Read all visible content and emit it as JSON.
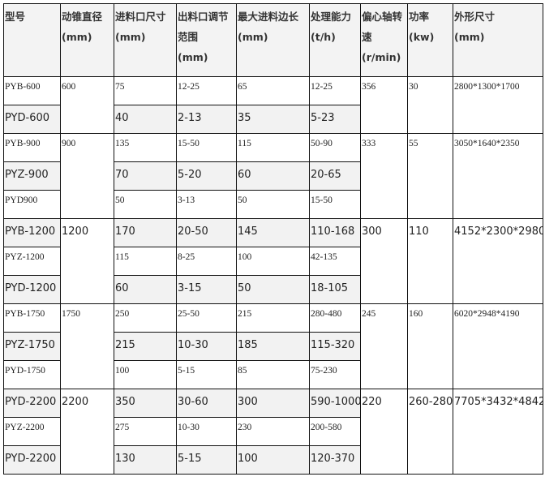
{
  "headers": [
    "型号",
    "动锥直径\n (mm)",
    "进料口尺寸\n (mm)",
    "出料口调节\n范围\n (mm)",
    "最大进料边长\n (mm)",
    "处理能力\n (t/h)",
    "偏心轴转\n速\n (r/min)",
    "功率\n(kw)",
    "外形尺寸\n (mm)"
  ],
  "groups": [
    {
      "diameter": "600",
      "speed": "356",
      "power": "30",
      "dimensions": "2800*1300*1700",
      "models": [
        {
          "model": "PYB-600",
          "feed": "75",
          "discharge": "12-25",
          "max_feed": "65",
          "capacity": "12-25"
        },
        {
          "model": "PYD-600",
          "feed": "40",
          "discharge": "2-13",
          "max_feed": "35",
          "capacity": "5-23"
        }
      ]
    },
    {
      "diameter": "900",
      "speed": "333",
      "power": "55",
      "dimensions": "3050*1640*2350",
      "models": [
        {
          "model": "PYB-900",
          "feed": "135",
          "discharge": "15-50",
          "max_feed": "115",
          "capacity": "50-90"
        },
        {
          "model": "PYZ-900",
          "feed": "70",
          "discharge": "5-20",
          "max_feed": "60",
          "capacity": "20-65"
        },
        {
          "model": "PYD900",
          "feed": "50",
          "discharge": "3-13",
          "max_feed": "50",
          "capacity": "15-50"
        }
      ]
    },
    {
      "diameter": "1200",
      "speed": "300",
      "power": "110",
      "dimensions": "4152*2300*2980",
      "models": [
        {
          "model": "PYB-1200",
          "feed": "170",
          "discharge": "20-50",
          "max_feed": "145",
          "capacity": "110-168"
        },
        {
          "model": "PYZ-1200",
          "feed": "115",
          "discharge": "8-25",
          "max_feed": "100",
          "capacity": "42-135"
        },
        {
          "model": "PYD-1200",
          "feed": "60",
          "discharge": "3-15",
          "max_feed": "50",
          "capacity": "18-105"
        }
      ]
    },
    {
      "diameter": "1750",
      "speed": "245",
      "power": "160",
      "dimensions": "6020*2948*4190",
      "models": [
        {
          "model": "PYB-1750",
          "feed": "250",
          "discharge": "25-50",
          "max_feed": "215",
          "capacity": "280-480"
        },
        {
          "model": "PYZ-1750",
          "feed": "215",
          "discharge": "10-30",
          "max_feed": "185",
          "capacity": "115-320"
        },
        {
          "model": "PYD-1750",
          "feed": "100",
          "discharge": "5-15",
          "max_feed": "85",
          "capacity": "75-230"
        }
      ]
    },
    {
      "diameter": "2200",
      "speed": "220",
      "power": "260-280",
      "dimensions": "7705*3432*4842",
      "models": [
        {
          "model": "PYD-2200",
          "feed": "350",
          "discharge": "30-60",
          "max_feed": "300",
          "capacity": "590-1000"
        },
        {
          "model": "PYZ-2200",
          "feed": "275",
          "discharge": "10-30",
          "max_feed": "230",
          "capacity": "200-580"
        },
        {
          "model": "PYD-2200",
          "feed": "130",
          "discharge": "5-15",
          "max_feed": "100",
          "capacity": "120-370"
        }
      ]
    }
  ]
}
